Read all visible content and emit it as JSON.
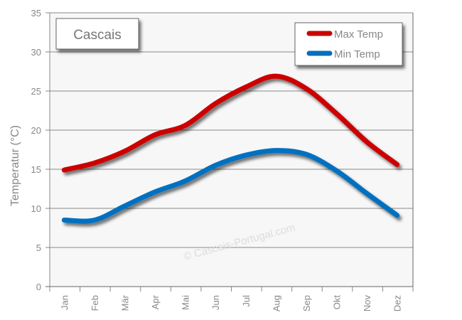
{
  "chart_data": {
    "type": "line",
    "title": "Cascais",
    "xlabel": "",
    "ylabel": "Temperatur (°C)",
    "ylim": [
      0,
      35
    ],
    "yticks": [
      0,
      5,
      10,
      15,
      20,
      25,
      30,
      35
    ],
    "grid": true,
    "legend_position": "top-right",
    "categories": [
      "Jan",
      "Feb",
      "Mär",
      "Apr",
      "Mai",
      "Jun",
      "Jul",
      "Aug",
      "Sep",
      "Okt",
      "Nov",
      "Dez"
    ],
    "series": [
      {
        "name": "Max Temp",
        "color": "#cc0000",
        "values": [
          14.9,
          15.8,
          17.3,
          19.4,
          20.6,
          23.4,
          25.5,
          26.9,
          25.3,
          22.1,
          18.5,
          15.6
        ]
      },
      {
        "name": "Min Temp",
        "color": "#0070c0",
        "values": [
          8.5,
          8.5,
          10.3,
          12.1,
          13.5,
          15.5,
          16.8,
          17.4,
          16.9,
          14.8,
          11.9,
          9.1
        ]
      }
    ],
    "watermark": "© Cascais-Portugal.com"
  }
}
